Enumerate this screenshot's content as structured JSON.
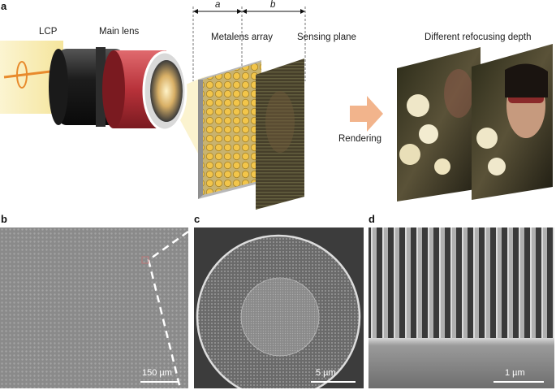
{
  "panel_a": {
    "letter": "a",
    "labels": {
      "lcp": "LCP",
      "main_lens": "Main lens",
      "a_dim": "a",
      "b_dim": "b",
      "metalens_array": "Metalens array",
      "sensing_plane": "Sensing plane",
      "different_refocusing_depth": "Different refocusing depth",
      "rendering": "Rendering"
    }
  },
  "panel_b": {
    "letter": "b",
    "scale_label": "150 µm"
  },
  "panel_c": {
    "letter": "c",
    "scale_label": "5 µm"
  },
  "panel_d": {
    "letter": "d",
    "scale_label": "1 µm"
  },
  "colors": {
    "lens_red": "#b8323a",
    "beam_yellow": "#f6e7a0",
    "arrow_orange": "#e88a2c",
    "rendering_arrow": "#f2b48c",
    "sem_gray": "#8a8a8a"
  }
}
